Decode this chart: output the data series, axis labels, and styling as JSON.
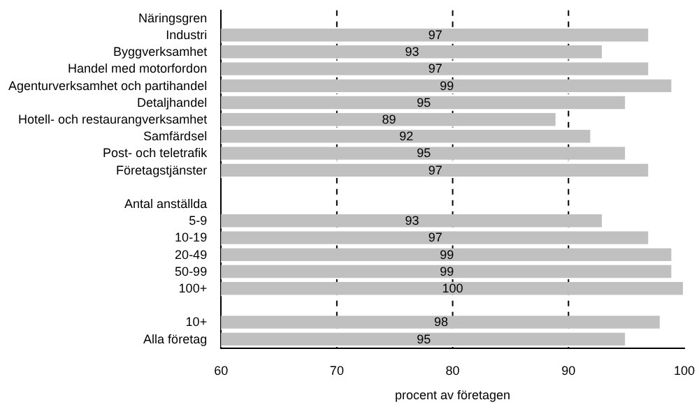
{
  "chart_data": {
    "type": "bar",
    "orientation": "horizontal",
    "xlabel": "procent av företagen",
    "categories": [
      "Näringsgren",
      "Industri",
      "Byggverksamhet",
      "Handel med motorfordon",
      "Agenturverksamhet och partihandel",
      "Detaljhandel",
      "Hotell- och restaurangverksamhet",
      "Samfärdsel",
      "Post- och teletrafik",
      "Företagstjänster",
      null,
      "Antal anställda",
      "5-9",
      "10-19",
      "20-49",
      "50-99",
      "100+",
      null,
      "10+",
      "Alla företag"
    ],
    "values": [
      null,
      97,
      93,
      97,
      99,
      95,
      89,
      92,
      95,
      97,
      null,
      null,
      93,
      97,
      99,
      99,
      100,
      null,
      98,
      95
    ],
    "color": "#c0c0c0",
    "xlim": [
      60,
      100
    ],
    "xticks": [
      60,
      70,
      80,
      90,
      100
    ],
    "grid": "x",
    "data_labels": true,
    "legend": false
  }
}
